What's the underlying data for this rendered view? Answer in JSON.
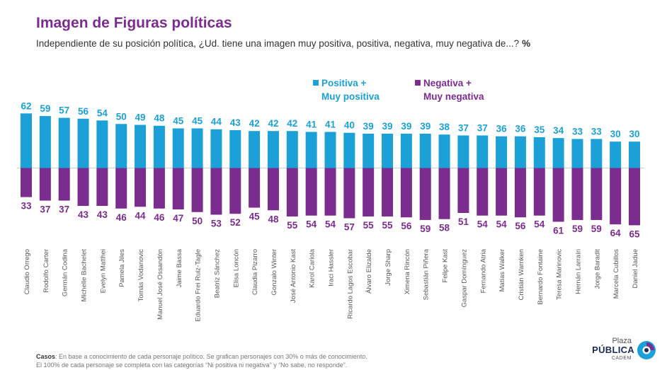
{
  "title": "Imagen de Figuras políticas",
  "subtitle": "Independiente de su posición política, ¿Ud. tiene una imagen muy positiva, positiva, negativa, muy negativa de...?",
  "unit": "%",
  "legend": {
    "positive_line1": "Positiva +",
    "positive_line2": "Muy positiva",
    "negative_line1": "Negativa +",
    "negative_line2": "Muy negativa"
  },
  "colors": {
    "positive": "#1ba1d8",
    "negative": "#7b2c8f",
    "title": "#7b2c8f"
  },
  "footer": {
    "casos_label": "Casos",
    "line1": ": En base a conocimiento de cada personaje político. Se grafican personajes con 30% o más de conocimiento.",
    "line2": "El 100% de cada personaje se completa con las categorías “Ni positiva ni negativa” y “No sabe, no responde”."
  },
  "logo": {
    "line1": "Plaza",
    "line2": "PÚBLICA",
    "line3": "CADEM"
  },
  "chart_data": {
    "type": "bar",
    "categories": [
      "Claudio Orrego",
      "Rodolfo Carter",
      "Germán Codina",
      "Michelle Bachelet",
      "Evelyn Matthei",
      "Pamela Jiles",
      "Tomás Vodanovic",
      "Manuel José Ossandón",
      "Jaime Bassa",
      "Eduardo Frei Ruiz-Tagle",
      "Beatriz Sánchez",
      "Elisa Loncón",
      "Claudia Pizarro",
      "Gonzalo Winter",
      "José Antonio Kast",
      "Karol Cariola",
      "Iraci Hassler",
      "Ricardo Lagos Escobar",
      "Álvaro Elizalde",
      "Jorge Sharp",
      "Ximena Rincón",
      "Sebastián Piñera",
      "Felipe Kast",
      "Gaspar Domínguez",
      "Fernando Atria",
      "Matías Walker",
      "Cristián Warnken",
      "Bernardo Fontaine",
      "Teresa Marinovic",
      "Hernán Larraín",
      "Jorge Baradit",
      "Marcela Cubillos",
      "Daniel Jadue"
    ],
    "series": [
      {
        "name": "Positiva + Muy positiva",
        "values": [
          62,
          59,
          57,
          56,
          54,
          50,
          49,
          48,
          45,
          45,
          44,
          43,
          42,
          42,
          42,
          41,
          41,
          40,
          39,
          39,
          39,
          39,
          38,
          37,
          37,
          36,
          36,
          35,
          34,
          33,
          33,
          30,
          30
        ]
      },
      {
        "name": "Negativa + Muy negativa",
        "values": [
          33,
          37,
          37,
          43,
          43,
          46,
          44,
          46,
          47,
          50,
          53,
          52,
          45,
          48,
          55,
          54,
          54,
          57,
          55,
          55,
          56,
          59,
          58,
          51,
          54,
          54,
          56,
          54,
          61,
          59,
          59,
          64,
          65
        ]
      }
    ],
    "ylim": [
      -65,
      62
    ],
    "grid": false
  }
}
